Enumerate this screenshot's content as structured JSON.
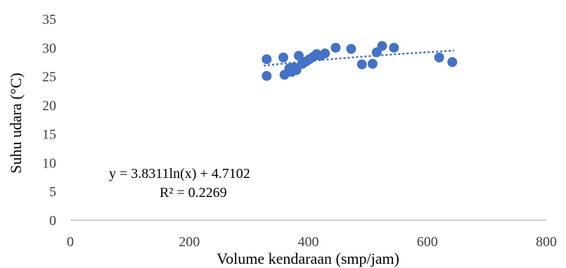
{
  "chart_data": {
    "type": "scatter",
    "title": "",
    "xlabel": "Volume kendaraan (smp/jam)",
    "ylabel": "Suhu udara (°C)",
    "xlim": [
      0,
      800
    ],
    "ylim": [
      0,
      35
    ],
    "x_ticks": [
      0,
      200,
      400,
      600,
      800
    ],
    "y_ticks": [
      0,
      5,
      10,
      15,
      20,
      25,
      30,
      35
    ],
    "grid": false,
    "legend": "none",
    "series": [
      {
        "color": "#4472C4",
        "points": [
          {
            "x": 330,
            "y": 28.0
          },
          {
            "x": 330,
            "y": 25.1
          },
          {
            "x": 358,
            "y": 28.3
          },
          {
            "x": 360,
            "y": 25.3
          },
          {
            "x": 368,
            "y": 26.4
          },
          {
            "x": 372,
            "y": 25.8
          },
          {
            "x": 376,
            "y": 26.6
          },
          {
            "x": 380,
            "y": 26.1
          },
          {
            "x": 384,
            "y": 28.6
          },
          {
            "x": 390,
            "y": 27.2
          },
          {
            "x": 396,
            "y": 27.6
          },
          {
            "x": 402,
            "y": 28.0
          },
          {
            "x": 408,
            "y": 28.4
          },
          {
            "x": 414,
            "y": 28.9
          },
          {
            "x": 420,
            "y": 28.6
          },
          {
            "x": 428,
            "y": 29.0
          },
          {
            "x": 446,
            "y": 30.0
          },
          {
            "x": 472,
            "y": 29.8
          },
          {
            "x": 490,
            "y": 27.1
          },
          {
            "x": 508,
            "y": 27.2
          },
          {
            "x": 515,
            "y": 29.2
          },
          {
            "x": 524,
            "y": 30.3
          },
          {
            "x": 544,
            "y": 30.0
          },
          {
            "x": 620,
            "y": 28.3
          },
          {
            "x": 642,
            "y": 27.5
          }
        ]
      }
    ],
    "trendline": {
      "type": "logarithmic",
      "color": "#4472C4",
      "a": 3.8311,
      "b": 4.7102,
      "x_range": [
        325,
        645
      ]
    },
    "annotations": {
      "equation": "y = 3.8311ln(x) + 4.7102",
      "r_squared": "R² = 0.2269"
    }
  }
}
